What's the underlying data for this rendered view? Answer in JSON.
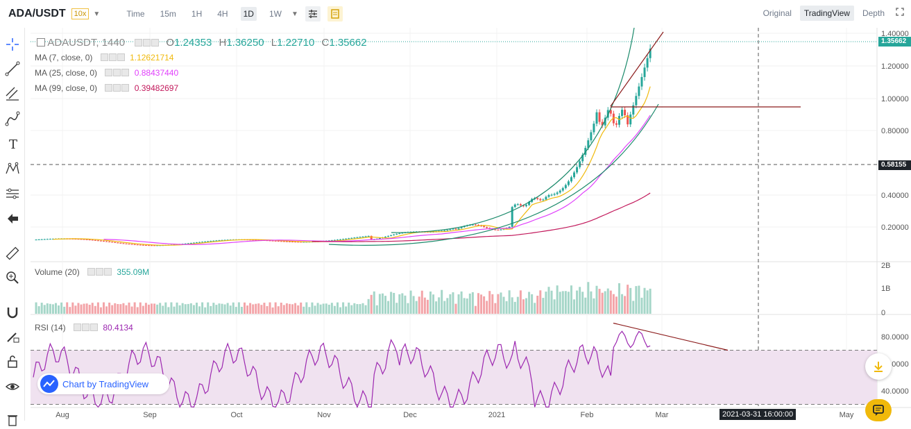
{
  "header": {
    "pair": "ADA/USDT",
    "leverage": "10x",
    "intervals": [
      "Time",
      "15m",
      "1H",
      "4H",
      "1D",
      "1W"
    ],
    "active_interval": "1D",
    "views": [
      "Original",
      "TradingView",
      "Depth"
    ],
    "active_view": "TradingView"
  },
  "main_legend": {
    "symbol": "ADAUSDT, 1440",
    "open_label": "O",
    "open": "1.24353",
    "high_label": "H",
    "high": "1.36250",
    "low_label": "L",
    "low": "1.22710",
    "close_label": "C",
    "close": "1.35662"
  },
  "ma": [
    {
      "label": "MA (7, close, 0)",
      "value": "1.12621714",
      "color": "#f0b90b"
    },
    {
      "label": "MA (25, close, 0)",
      "value": "0.88437440",
      "color": "#e040fb"
    },
    {
      "label": "MA (99, close, 0)",
      "value": "0.39482697",
      "color": "#c2185b"
    }
  ],
  "volume": {
    "label": "Volume (20)",
    "value": "355.09M"
  },
  "rsi": {
    "label": "RSI (14)",
    "value": "80.4134"
  },
  "price_axis": [
    "1.40000",
    "1.20000",
    "1.00000",
    "0.80000",
    "0.40000",
    "0.20000"
  ],
  "price_labels": {
    "last": "1.35662",
    "crosshair": "0.58155"
  },
  "volume_axis": [
    "2B",
    "1B",
    "0"
  ],
  "rsi_axis": [
    "80.0000",
    "60.0000",
    "40.0000"
  ],
  "time_axis": [
    "Aug",
    "Sep",
    "Oct",
    "Nov",
    "Dec",
    "2021",
    "Feb",
    "Mar",
    "May"
  ],
  "crosshair_time": "2021-03-31 16:00:00",
  "watermark": "Chart by TradingView",
  "colors": {
    "up": "#26a69a",
    "down": "#ef5350",
    "last_price": "#26a69a",
    "rsi": "#9c27b0",
    "trend": "#8b1a1a",
    "arc": "#1b8a6b"
  }
}
